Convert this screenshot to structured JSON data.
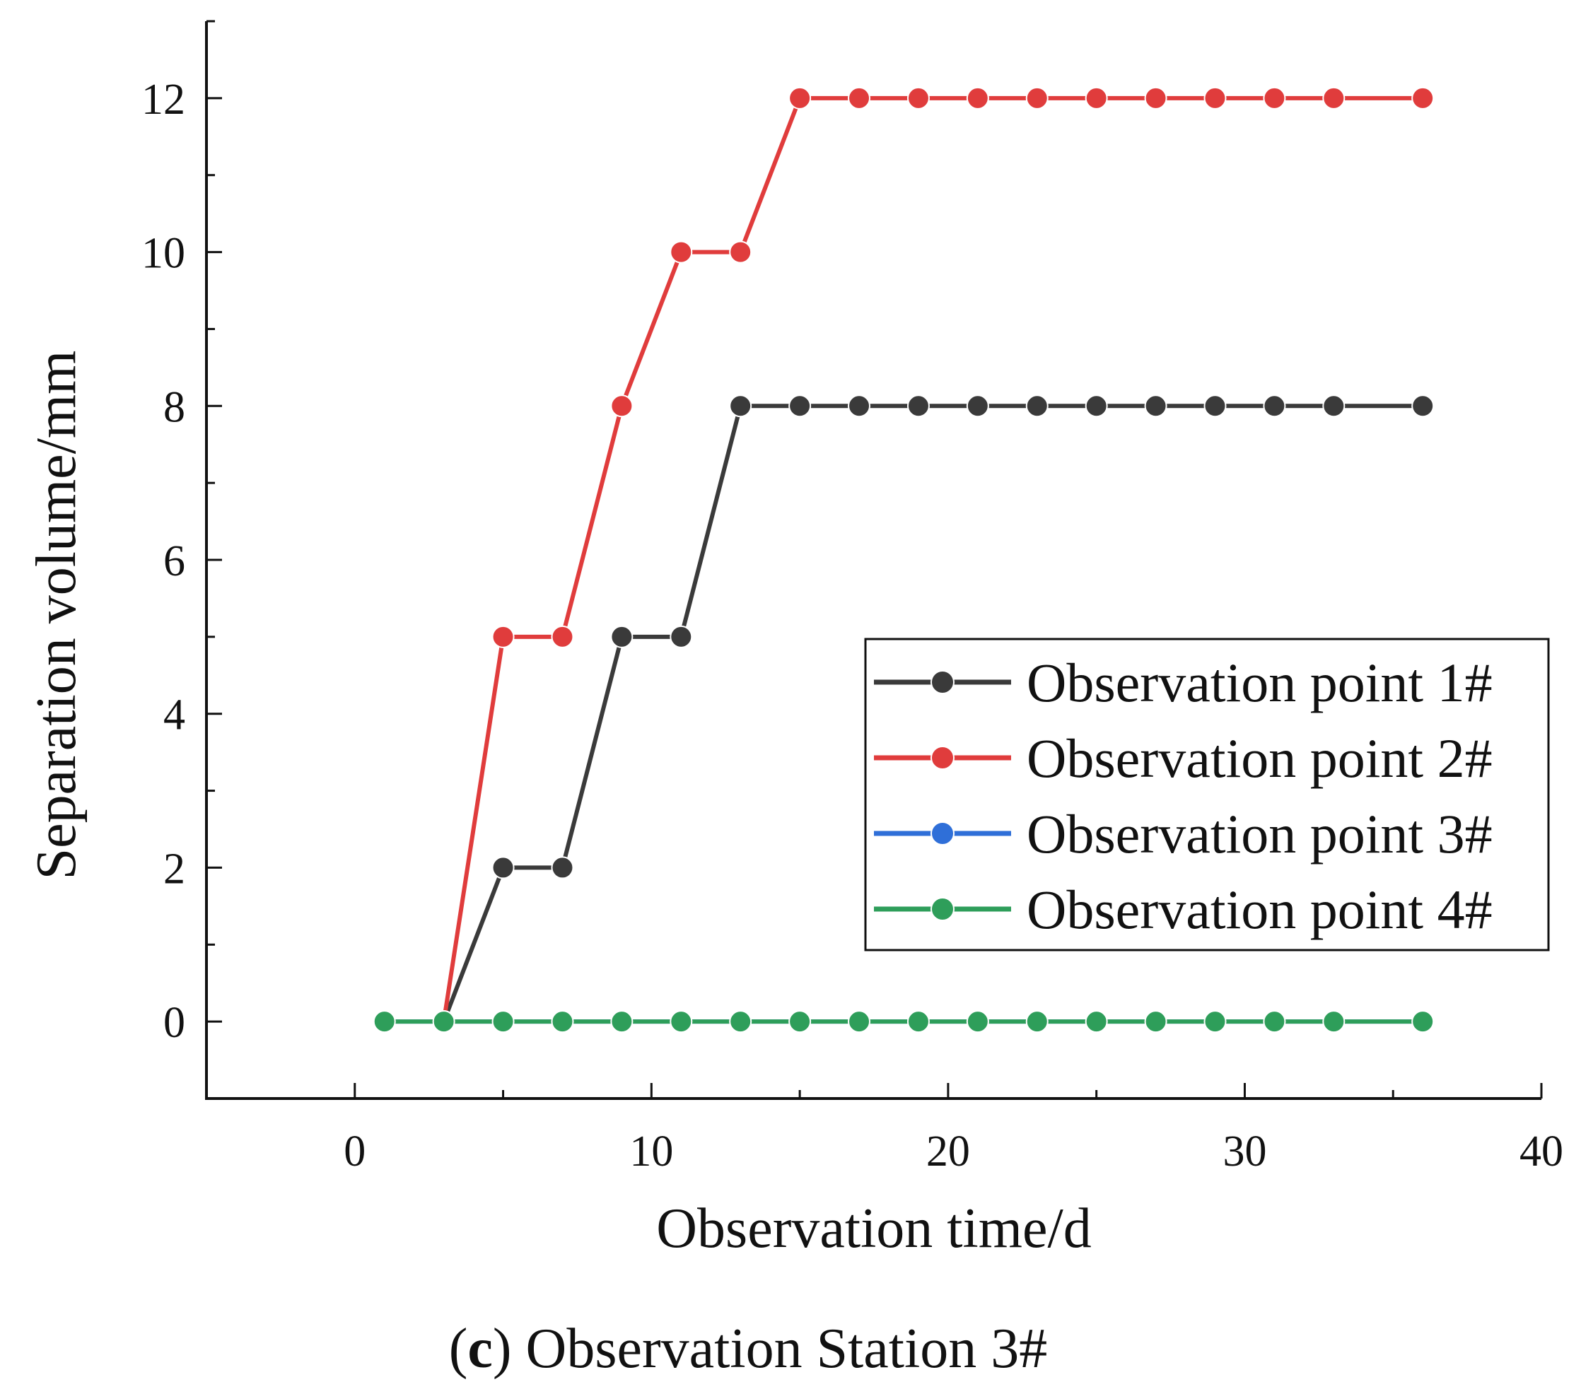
{
  "caption": {
    "prefix_open": "(",
    "letter": "c",
    "suffix": ") Observation Station 3#"
  },
  "chart_data": {
    "type": "line",
    "title": "",
    "xlabel": "Observation time/d",
    "ylabel": "Separation volume/mm",
    "xlim": [
      -5,
      40
    ],
    "ylim": [
      -1,
      13
    ],
    "xticks": [
      0,
      10,
      20,
      30,
      40
    ],
    "yticks": [
      0,
      2,
      4,
      6,
      8,
      10,
      12
    ],
    "x": [
      1,
      3,
      5,
      7,
      9,
      11,
      13,
      15,
      17,
      19,
      21,
      23,
      25,
      27,
      29,
      31,
      33,
      36
    ],
    "legend_position": "center-right",
    "series": [
      {
        "name": "Observation point 1#",
        "color": "#3a3a3a",
        "x": [
          3,
          5,
          7,
          9,
          11,
          13,
          15,
          17,
          19,
          21,
          23,
          25,
          27,
          29,
          31,
          33,
          36
        ],
        "values": [
          0,
          2,
          2,
          5,
          5,
          8,
          8,
          8,
          8,
          8,
          8,
          8,
          8,
          8,
          8,
          8,
          8
        ]
      },
      {
        "name": "Observation point 2#",
        "color": "#e03c3c",
        "x": [
          3,
          5,
          7,
          9,
          11,
          13,
          15,
          17,
          19,
          21,
          23,
          25,
          27,
          29,
          31,
          33,
          36
        ],
        "values": [
          0,
          5,
          5,
          8,
          10,
          10,
          12,
          12,
          12,
          12,
          12,
          12,
          12,
          12,
          12,
          12,
          12
        ]
      },
      {
        "name": "Observation point 3#",
        "color": "#2f6fd8",
        "x": [
          1,
          3,
          5,
          7,
          9,
          11,
          13,
          15,
          17,
          19,
          21,
          23,
          25,
          27,
          29,
          31,
          33,
          36
        ],
        "values": [
          0,
          0,
          0,
          0,
          0,
          0,
          0,
          0,
          0,
          0,
          0,
          0,
          0,
          0,
          0,
          0,
          0,
          0
        ]
      },
      {
        "name": "Observation point 4#",
        "color": "#2e9e5a",
        "x": [
          1,
          3,
          5,
          7,
          9,
          11,
          13,
          15,
          17,
          19,
          21,
          23,
          25,
          27,
          29,
          31,
          33,
          36
        ],
        "values": [
          0,
          0,
          0,
          0,
          0,
          0,
          0,
          0,
          0,
          0,
          0,
          0,
          0,
          0,
          0,
          0,
          0,
          0
        ]
      }
    ]
  }
}
